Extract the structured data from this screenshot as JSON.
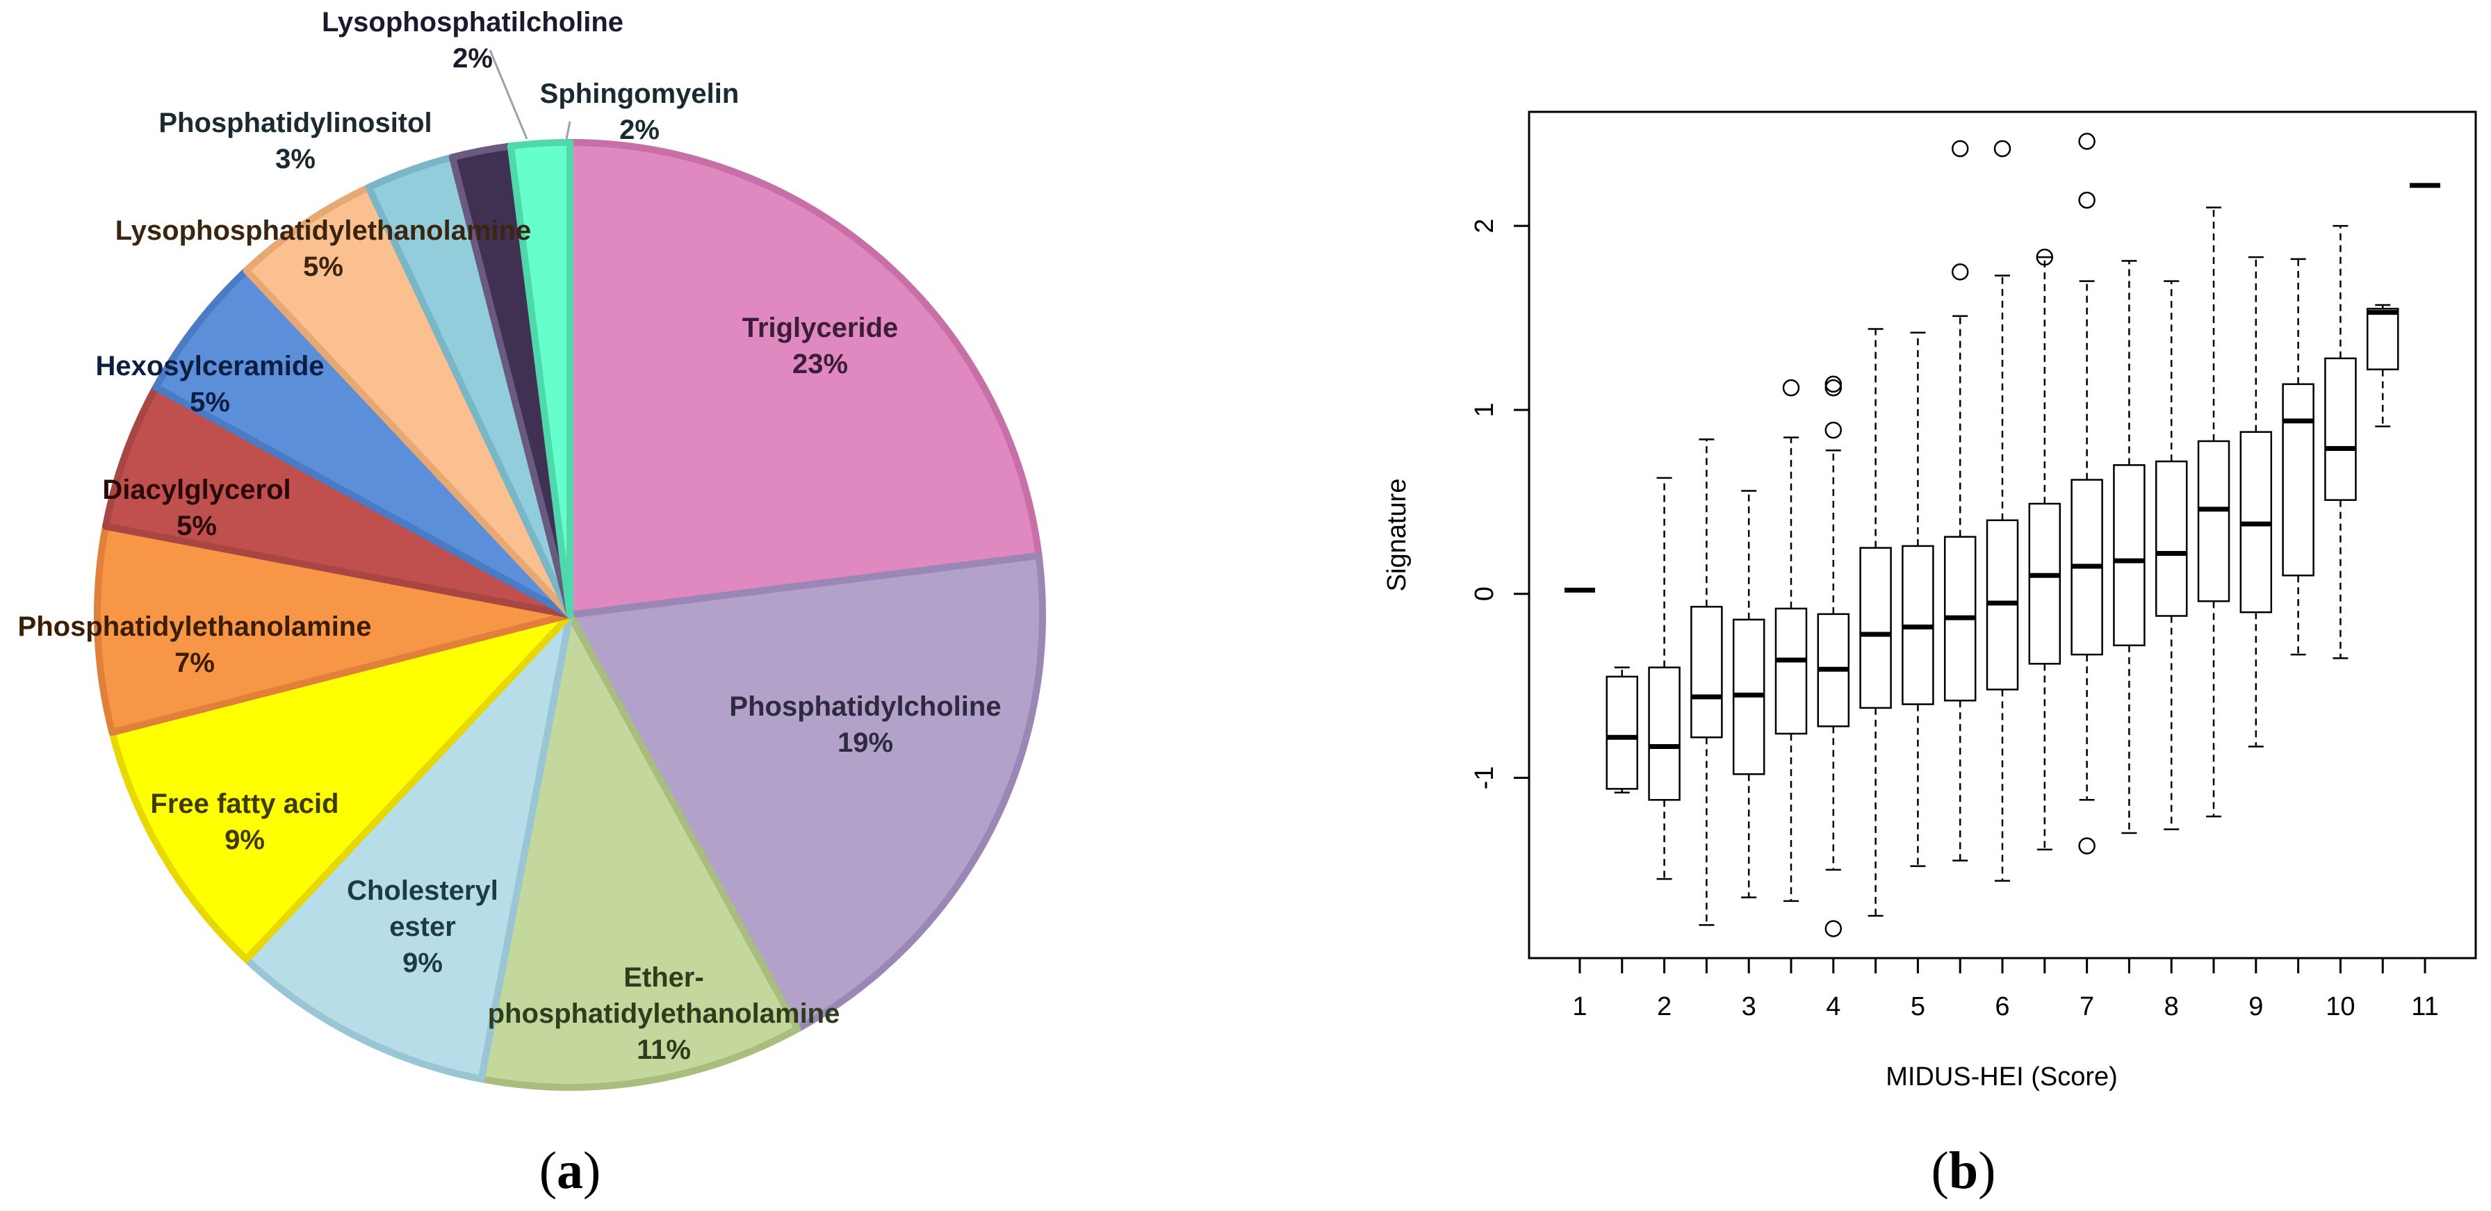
{
  "chart_data": [
    {
      "type": "pie",
      "panel": "a",
      "slices": [
        {
          "name": "Triglyceride",
          "lines": [
            "Triglyceride",
            "23%"
          ],
          "value": 23,
          "color": "#e088c0",
          "edge": "#c96fa8"
        },
        {
          "name": "Phosphatidylcholine",
          "lines": [
            "Phosphatidylcholine",
            "19%"
          ],
          "value": 19,
          "color": "#b2a1c8",
          "edge": "#9a87b5"
        },
        {
          "name": "Ether-phosphatidylethanolamine",
          "lines": [
            "Ether-",
            "phosphatidylethanolamine",
            "11%"
          ],
          "value": 11,
          "color": "#c4d79c",
          "edge": "#a9be7e"
        },
        {
          "name": "Cholesteryl ester",
          "lines": [
            "Cholesteryl",
            "ester",
            "9%"
          ],
          "value": 9,
          "color": "#b7dde8",
          "edge": "#98c6d4"
        },
        {
          "name": "Free fatty acid",
          "lines": [
            "Free fatty acid",
            "9%"
          ],
          "value": 9,
          "color": "#ffff00",
          "edge": "#e6d800"
        },
        {
          "name": "Phosphatidylethanolamine",
          "lines": [
            "Phosphatidylethanolamine",
            "7%"
          ],
          "value": 7,
          "color": "#f79646",
          "edge": "#e0803a"
        },
        {
          "name": "Diacylglycerol",
          "lines": [
            "Diacylglycerol",
            "5%"
          ],
          "value": 5,
          "color": "#c0504d",
          "edge": "#a84643"
        },
        {
          "name": "Hexosylceramide",
          "lines": [
            "Hexosylceramide",
            "5%"
          ],
          "value": 5,
          "color": "#5b8fd9",
          "edge": "#4a7bc4"
        },
        {
          "name": "Lysophosphatidylethanolamine",
          "lines": [
            "Lysophosphatidylethanolamine",
            "5%"
          ],
          "value": 5,
          "color": "#fac090",
          "edge": "#e8a874"
        },
        {
          "name": "Phosphatidylinositol",
          "lines": [
            "Phosphatidylinositol",
            "3%"
          ],
          "value": 3,
          "color": "#92cddc",
          "edge": "#79b6c6"
        },
        {
          "name": "Lysophosphatilcholine",
          "lines": [
            "Lysophosphatilcholine",
            "2%"
          ],
          "value": 2,
          "color": "#403152",
          "edge": "#6a5a80"
        },
        {
          "name": "Sphingomyelin",
          "lines": [
            "Sphingomyelin",
            "2%"
          ],
          "value": 2,
          "color": "#66ffcc",
          "edge": "#4fd8ac"
        }
      ],
      "caption": "(a)"
    },
    {
      "type": "boxplot",
      "panel": "b",
      "xlabel": "MIDUS-HEI (Score)",
      "ylabel": "Signature",
      "ylim": [
        -1.98,
        2.62
      ],
      "xlim": [
        0.4,
        11.6
      ],
      "yticks": [
        -1,
        0,
        1,
        2
      ],
      "xticks": [
        1,
        2,
        3,
        4,
        5,
        6,
        7,
        8,
        9,
        10,
        11
      ],
      "boxes": [
        {
          "x": 1,
          "min": 0.02,
          "q1": 0.02,
          "median": 0.02,
          "q3": 0.02,
          "max": 0.02,
          "outliers": []
        },
        {
          "x": 1.5,
          "min": -1.08,
          "q1": -1.06,
          "median": -0.78,
          "q3": -0.45,
          "max": -0.4,
          "outliers": []
        },
        {
          "x": 2,
          "min": -1.55,
          "q1": -1.12,
          "median": -0.83,
          "q3": -0.4,
          "max": 0.63,
          "outliers": []
        },
        {
          "x": 2.5,
          "min": -1.8,
          "q1": -0.78,
          "median": -0.56,
          "q3": -0.07,
          "max": 0.84,
          "outliers": []
        },
        {
          "x": 3,
          "min": -1.65,
          "q1": -0.98,
          "median": -0.55,
          "q3": -0.14,
          "max": 0.56,
          "outliers": []
        },
        {
          "x": 3.5,
          "min": -1.67,
          "q1": -0.76,
          "median": -0.36,
          "q3": -0.08,
          "max": 0.85,
          "outliers": [
            1.12
          ]
        },
        {
          "x": 4,
          "min": -1.5,
          "q1": -0.72,
          "median": -0.41,
          "q3": -0.11,
          "max": 0.78,
          "outliers": [
            0.89,
            1.12,
            1.14,
            -1.82
          ]
        },
        {
          "x": 4.5,
          "min": -1.75,
          "q1": -0.62,
          "median": -0.22,
          "q3": 0.25,
          "max": 1.44,
          "outliers": []
        },
        {
          "x": 5,
          "min": -1.48,
          "q1": -0.6,
          "median": -0.18,
          "q3": 0.26,
          "max": 1.42,
          "outliers": []
        },
        {
          "x": 5.5,
          "min": -1.45,
          "q1": -0.58,
          "median": -0.13,
          "q3": 0.31,
          "max": 1.51,
          "outliers": [
            1.75,
            2.42
          ]
        },
        {
          "x": 6,
          "min": -1.56,
          "q1": -0.52,
          "median": -0.05,
          "q3": 0.4,
          "max": 1.73,
          "outliers": [
            2.42
          ]
        },
        {
          "x": 6.5,
          "min": -1.39,
          "q1": -0.38,
          "median": 0.1,
          "q3": 0.49,
          "max": 1.83,
          "outliers": [
            1.83
          ]
        },
        {
          "x": 7,
          "min": -1.12,
          "q1": -0.33,
          "median": 0.15,
          "q3": 0.62,
          "max": 1.7,
          "outliers": [
            2.14,
            2.46,
            -1.37
          ]
        },
        {
          "x": 7.5,
          "min": -1.3,
          "q1": -0.28,
          "median": 0.18,
          "q3": 0.7,
          "max": 1.81,
          "outliers": []
        },
        {
          "x": 8,
          "min": -1.28,
          "q1": -0.12,
          "median": 0.22,
          "q3": 0.72,
          "max": 1.7,
          "outliers": []
        },
        {
          "x": 8.5,
          "min": -1.21,
          "q1": -0.04,
          "median": 0.46,
          "q3": 0.83,
          "max": 2.1,
          "outliers": []
        },
        {
          "x": 9,
          "min": -0.83,
          "q1": -0.1,
          "median": 0.38,
          "q3": 0.88,
          "max": 1.83,
          "outliers": []
        },
        {
          "x": 9.5,
          "min": -0.33,
          "q1": 0.1,
          "median": 0.94,
          "q3": 1.14,
          "max": 1.82,
          "outliers": []
        },
        {
          "x": 10,
          "min": -0.35,
          "q1": 0.51,
          "median": 0.79,
          "q3": 1.28,
          "max": 2.0,
          "outliers": []
        },
        {
          "x": 10.5,
          "min": 0.91,
          "q1": 1.22,
          "median": 1.53,
          "q3": 1.55,
          "max": 1.57,
          "outliers": []
        },
        {
          "x": 11,
          "min": 2.22,
          "q1": 2.22,
          "median": 2.22,
          "q3": 2.22,
          "max": 2.22,
          "outliers": []
        }
      ],
      "caption": "(b)"
    }
  ]
}
